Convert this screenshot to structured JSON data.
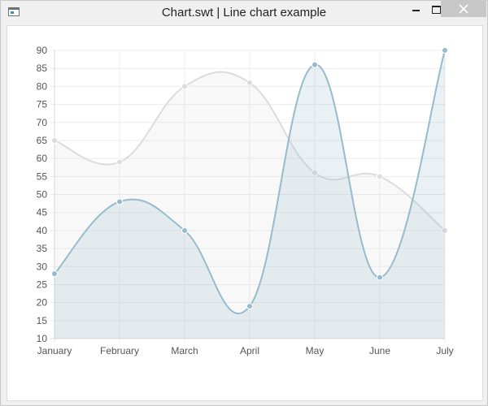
{
  "window": {
    "title": "Chart.swt | Line chart example"
  },
  "chart_data": {
    "type": "line",
    "title": "",
    "xlabel": "",
    "ylabel": "",
    "categories": [
      "January",
      "February",
      "March",
      "April",
      "May",
      "June",
      "July"
    ],
    "ylim": [
      10,
      90
    ],
    "ytick_step": 5,
    "grid": true,
    "smooth": true,
    "filled": true,
    "series": [
      {
        "values": [
          65,
          59,
          80,
          81,
          56,
          55,
          40
        ],
        "line_color": "#dcdcdc",
        "fill_color": "#dcdcdc",
        "fill_opacity": 0.2,
        "point_color": "#dcdcdc"
      },
      {
        "values": [
          28,
          48,
          40,
          19,
          86,
          27,
          90
        ],
        "line_color": "#97bbcd",
        "fill_color": "#97bbcd",
        "fill_opacity": 0.2,
        "point_color": "#97bbcd"
      }
    ]
  }
}
